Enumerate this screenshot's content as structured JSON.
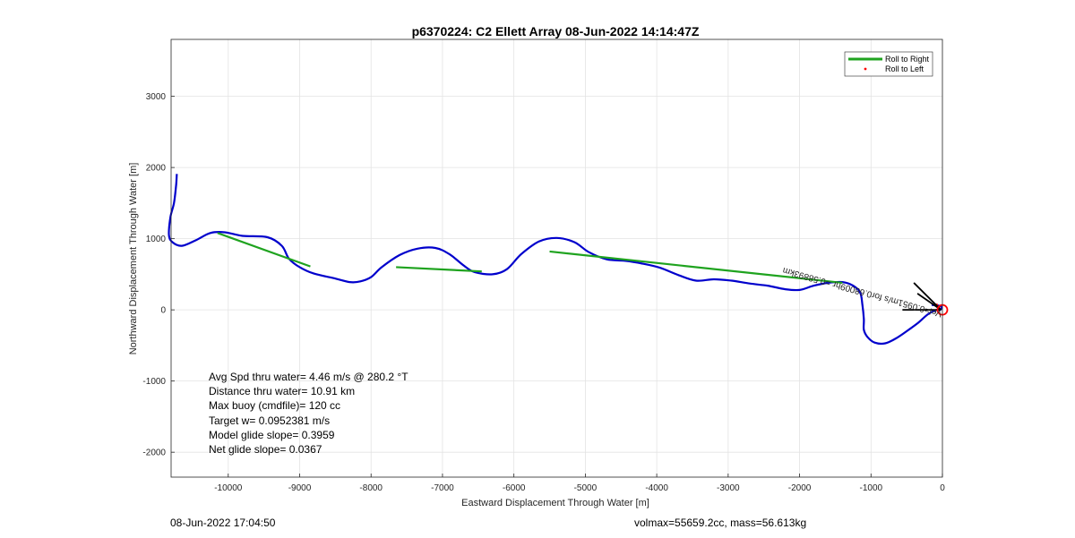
{
  "chart_data": {
    "type": "line",
    "title": "p6370224: C2 Ellett Array 08-Jun-2022 14:14:47Z",
    "xlabel": "Eastward Displacement Through Water [m]",
    "ylabel": "Northward Displacement Through Water [m]",
    "xlim": [
      -10800,
      0
    ],
    "ylim": [
      -2350,
      3800
    ],
    "x_ticks": [
      -10000,
      -9000,
      -8000,
      -7000,
      -6000,
      -5000,
      -4000,
      -3000,
      -2000,
      -1000,
      0
    ],
    "y_ticks": [
      -2000,
      -1000,
      0,
      1000,
      2000,
      3000
    ],
    "grid": true,
    "legend_position": "top-right",
    "series": [
      {
        "name": "",
        "color": "#0000cc",
        "style": "track",
        "x": [
          -10720,
          -10730,
          -10760,
          -10810,
          -10830,
          -10780,
          -10650,
          -10450,
          -10250,
          -10050,
          -9800,
          -9450,
          -9250,
          -9150,
          -9000,
          -8800,
          -8500,
          -8300,
          -8150,
          -8000,
          -7850,
          -7600,
          -7350,
          -7100,
          -6900,
          -6700,
          -6550,
          -6300,
          -6100,
          -5900,
          -5650,
          -5400,
          -5150,
          -4950,
          -4700,
          -4450,
          -4200,
          -3950,
          -3700,
          -3450,
          -3200,
          -2950,
          -2700,
          -2450,
          -2200,
          -2000,
          -1800,
          -1600,
          -1400,
          -1250,
          -1150,
          -1120,
          -1100,
          -1100,
          -1050,
          -950,
          -800,
          -650,
          -500,
          -350,
          -200,
          -80,
          -30,
          -10,
          -50,
          -150
        ],
        "y": [
          1910,
          1750,
          1500,
          1300,
          1050,
          950,
          900,
          980,
          1080,
          1090,
          1040,
          1020,
          900,
          720,
          600,
          510,
          440,
          390,
          400,
          460,
          600,
          770,
          860,
          870,
          780,
          620,
          530,
          500,
          570,
          780,
          960,
          1010,
          950,
          810,
          710,
          690,
          650,
          590,
          490,
          410,
          430,
          410,
          370,
          340,
          290,
          280,
          340,
          380,
          390,
          340,
          240,
          70,
          -130,
          -280,
          -380,
          -460,
          -470,
          -400,
          -300,
          -190,
          -60,
          0,
          0,
          40,
          60,
          70
        ]
      },
      {
        "name": "Roll to Right",
        "color": "#1fa31f",
        "style": "segments",
        "segments": [
          {
            "x": [
              -10150,
              -8850
            ],
            "y": [
              1080,
              610
            ]
          },
          {
            "x": [
              -7650,
              -6450
            ],
            "y": [
              600,
              540
            ]
          },
          {
            "x": [
              -5500,
              -1400
            ],
            "y": [
              820,
              380
            ]
          }
        ]
      },
      {
        "name": "Roll to Left",
        "color": "#ff0000",
        "style": "markers",
        "x": [
          -50,
          -80
        ],
        "y": [
          40,
          70
        ]
      }
    ],
    "vector_arrows": [
      {
        "x": [
          -400,
          -20
        ],
        "y": [
          380,
          0
        ]
      },
      {
        "x": [
          -350,
          -20
        ],
        "y": [
          230,
          0
        ]
      },
      {
        "x": [
          -560,
          -20
        ],
        "y": [
          0,
          0
        ]
      }
    ],
    "end_marker": {
      "x": 0,
      "y": 0,
      "color": "#ff0000"
    },
    "rotated_annotation": "Vel=0.0951m/s for0.68009hr =0.58893km",
    "stats_lines": [
      "Avg Spd thru water=  4.46 m/s @ 280.2 °T",
      "Distance thru water= 10.91 km",
      "Max buoy (cmdfile)= 120 cc",
      "Target w= 0.0952381 m/s",
      "Model glide slope= 0.3959",
      "Net glide slope= 0.0367"
    ],
    "footer_left": "08-Jun-2022 17:04:50",
    "footer_right": "volmax=55659.2cc, mass=56.613kg"
  }
}
